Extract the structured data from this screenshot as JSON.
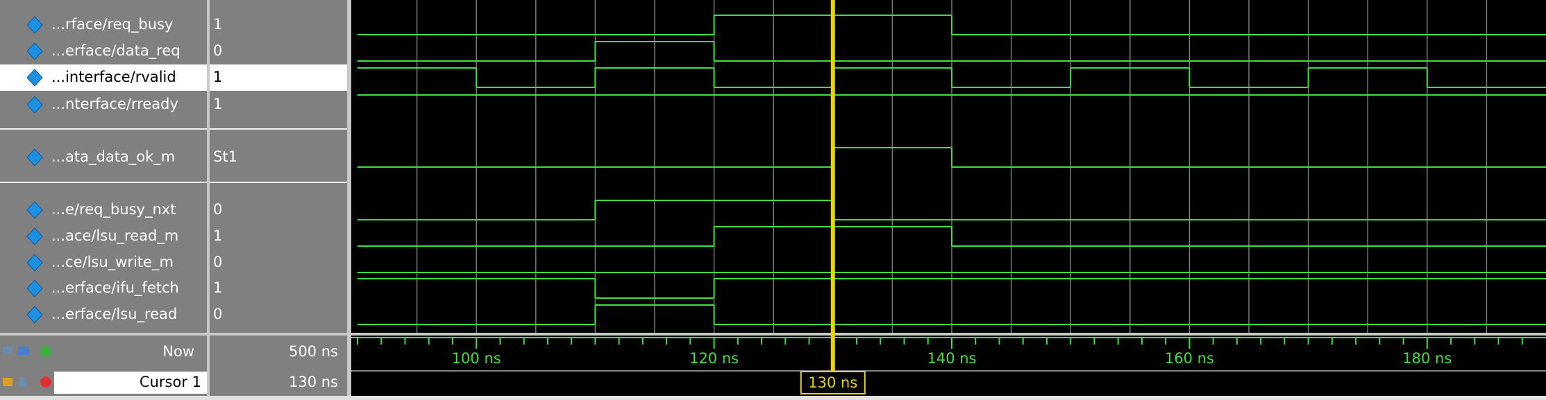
{
  "signals": [
    {
      "name": "...rface/req_busy",
      "value": "1",
      "times": [
        90,
        120,
        140
      ],
      "levels": [
        0,
        1,
        0
      ]
    },
    {
      "name": "...erface/data_req",
      "value": "0",
      "times": [
        90,
        110,
        120
      ],
      "levels": [
        0,
        1,
        0
      ]
    },
    {
      "name": "...interface/rvalid",
      "value": "1",
      "times": [
        90,
        100,
        110,
        120,
        130,
        140,
        150,
        160,
        170,
        180
      ],
      "levels": [
        1,
        0,
        1,
        0,
        1,
        0,
        1,
        0,
        1,
        0
      ]
    },
    {
      "name": "...nterface/rready",
      "value": "1",
      "times": [
        90
      ],
      "levels": [
        1
      ]
    },
    {
      "name": "...ata_data_ok_m",
      "value": "St1",
      "times": [
        90,
        130,
        140
      ],
      "levels": [
        0,
        1,
        0
      ]
    },
    {
      "name": "...e/req_busy_nxt",
      "value": "0",
      "times": [
        90,
        110,
        130
      ],
      "levels": [
        0,
        1,
        0
      ]
    },
    {
      "name": "...ace/lsu_read_m",
      "value": "1",
      "times": [
        90,
        120,
        140
      ],
      "levels": [
        0,
        1,
        0
      ]
    },
    {
      "name": "...ce/lsu_write_m",
      "value": "0",
      "times": [
        90
      ],
      "levels": [
        0
      ]
    },
    {
      "name": "...erface/ifu_fetch",
      "value": "1",
      "times": [
        90,
        110,
        120
      ],
      "levels": [
        1,
        0,
        1
      ]
    },
    {
      "name": "...erface/lsu_read",
      "value": "0",
      "times": [
        90,
        110,
        120
      ],
      "levels": [
        0,
        1,
        0
      ]
    }
  ],
  "selected_signal": 2,
  "time_range": [
    90,
    190
  ],
  "time_ticks": [
    {
      "value": 100,
      "label": "100 ns"
    },
    {
      "value": 120,
      "label": "120 ns"
    },
    {
      "value": 140,
      "label": "140 ns"
    },
    {
      "value": 160,
      "label": "160 ns"
    },
    {
      "value": 180,
      "label": "180 ns"
    }
  ],
  "minor_ticks": [
    90,
    92,
    94,
    96,
    98,
    102,
    104,
    106,
    108,
    110,
    112,
    114,
    116,
    118,
    122,
    124,
    126,
    128,
    130,
    132,
    134,
    136,
    138,
    142,
    144,
    146,
    148,
    150,
    152,
    154,
    156,
    158,
    162,
    164,
    166,
    168,
    170,
    172,
    174,
    176,
    178,
    182,
    184,
    186,
    188
  ],
  "grid_lines": [
    95,
    100,
    105,
    110,
    115,
    120,
    125,
    130,
    135,
    140,
    145,
    150,
    155,
    160,
    165,
    170,
    175,
    180,
    185
  ],
  "now": {
    "name": "Now",
    "value": "500 ns"
  },
  "cursor": {
    "name": "Cursor 1",
    "time": 130,
    "label": "130 ns"
  }
}
